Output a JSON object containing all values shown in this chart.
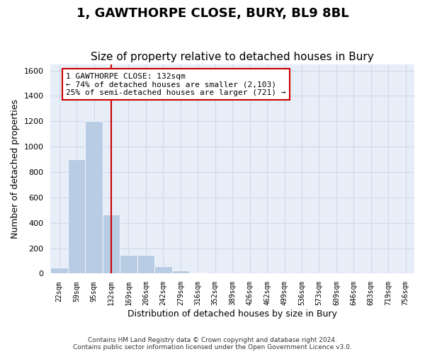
{
  "title": "1, GAWTHORPE CLOSE, BURY, BL9 8BL",
  "subtitle": "Size of property relative to detached houses in Bury",
  "xlabel": "Distribution of detached houses by size in Bury",
  "ylabel": "Number of detached properties",
  "footer_line1": "Contains HM Land Registry data © Crown copyright and database right 2024.",
  "footer_line2": "Contains public sector information licensed under the Open Government Licence v3.0.",
  "bin_labels": [
    "22sqm",
    "59sqm",
    "95sqm",
    "132sqm",
    "169sqm",
    "206sqm",
    "242sqm",
    "279sqm",
    "316sqm",
    "352sqm",
    "389sqm",
    "426sqm",
    "462sqm",
    "499sqm",
    "536sqm",
    "573sqm",
    "609sqm",
    "646sqm",
    "683sqm",
    "719sqm",
    "756sqm"
  ],
  "bar_values": [
    50,
    900,
    1200,
    465,
    150,
    150,
    60,
    25,
    10,
    0,
    0,
    0,
    0,
    0,
    0,
    0,
    0,
    0,
    0,
    0,
    0
  ],
  "bar_color": "#b8cce4",
  "bar_edgecolor": "#ffffff",
  "grid_color": "#d0d8e8",
  "background_color": "#e8eef8",
  "vline_x": 3,
  "vline_color": "#cc0000",
  "annotation_text": "1 GAWTHORPE CLOSE: 132sqm\n← 74% of detached houses are smaller (2,103)\n25% of semi-detached houses are larger (721) →",
  "annotation_box_color": "#ffffff",
  "annotation_box_edgecolor": "#cc0000",
  "ylim": [
    0,
    1650
  ],
  "yticks": [
    0,
    200,
    400,
    600,
    800,
    1000,
    1200,
    1400,
    1600
  ],
  "title_fontsize": 13,
  "subtitle_fontsize": 11,
  "label_fontsize": 9,
  "tick_fontsize": 8
}
